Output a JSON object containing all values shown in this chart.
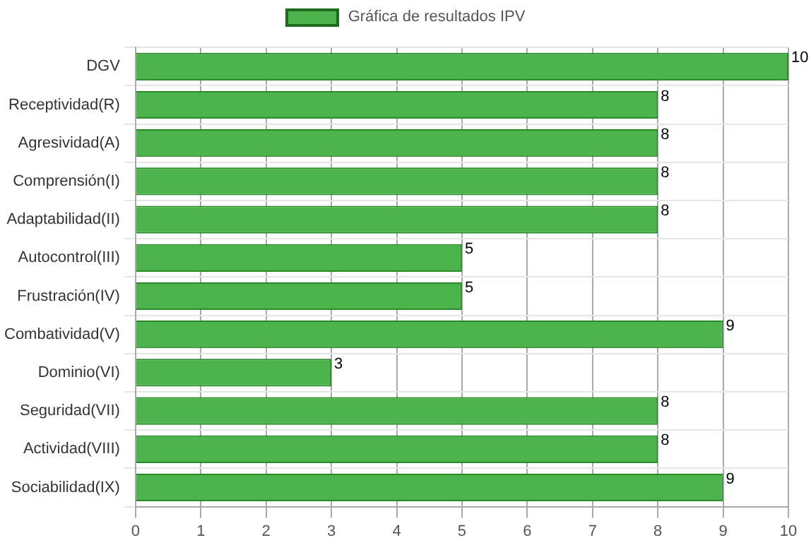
{
  "chart_data": {
    "type": "bar",
    "orientation": "horizontal",
    "categories": [
      "DGV",
      "Receptividad(R)",
      "Agresividad(A)",
      "Comprensión(I)",
      "Adaptabilidad(II)",
      "Autocontrol(III)",
      "Frustración(IV)",
      "Combatividad(V)",
      "Dominio(VI)",
      "Seguridad(VII)",
      "Actividad(VIII)",
      "Sociabilidad(IX)"
    ],
    "series": [
      {
        "name": "Gráfica de resultados IPV",
        "color": "#4db34d",
        "values": [
          10,
          8,
          8,
          8,
          8,
          5,
          5,
          9,
          3,
          8,
          8,
          9
        ]
      }
    ],
    "xlim": [
      0,
      10
    ],
    "xticks": [
      0,
      1,
      2,
      3,
      4,
      5,
      6,
      7,
      8,
      9,
      10
    ],
    "grid": true,
    "legend": "top",
    "data_labels": true
  }
}
